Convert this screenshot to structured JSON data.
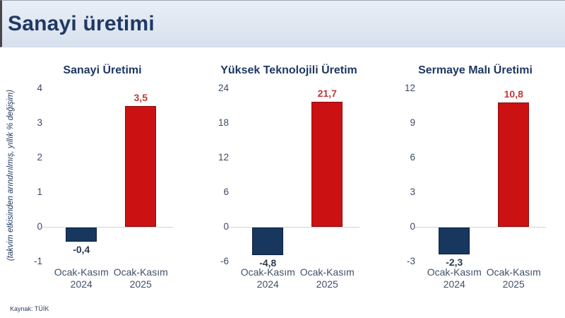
{
  "header": {
    "title": "Sanayi üretimi"
  },
  "y_axis_label": "(takvim etkisinden arındırılmış, yıllık % değişim)",
  "source": "Kaynak: TÜİK",
  "colors": {
    "navy_bar": "#17375e",
    "navy_bar_border": "#0d2140",
    "red_bar": "#cb1111",
    "red_bar_border": "#8e0e0e",
    "red_label": "#be3a3a",
    "navy_label": "#2e3b52",
    "title_navy": "#1f3864",
    "axis_text": "#3d4a63",
    "header_bg": "#dce5f0",
    "zero_line": "#d2d2d2"
  },
  "chart_data": [
    {
      "type": "bar",
      "title": "Sanayi Üretimi",
      "categories": [
        {
          "line1": "Ocak-Kasım",
          "line2": "2024"
        },
        {
          "line1": "Ocak-Kasım",
          "line2": "2025"
        }
      ],
      "values": [
        -0.4,
        3.5
      ],
      "value_labels": [
        "-0,4",
        "3,5"
      ],
      "bar_colors": [
        "#17375e",
        "#cb1111"
      ],
      "bar_border_colors": [
        "#0d2140",
        "#8e0e0e"
      ],
      "label_colors": [
        "#2e3b52",
        "#be3a3a"
      ],
      "ylim": [
        -1,
        4
      ],
      "yticks": [
        4,
        3,
        2,
        1,
        0,
        -1
      ],
      "grid": false,
      "legend": false
    },
    {
      "type": "bar",
      "title": "Yüksek Teknolojili Üretim",
      "categories": [
        {
          "line1": "Ocak-Kasım",
          "line2": "2024"
        },
        {
          "line1": "Ocak-Kasım",
          "line2": "2025"
        }
      ],
      "values": [
        -4.8,
        21.7
      ],
      "value_labels": [
        "-4,8",
        "21,7"
      ],
      "bar_colors": [
        "#17375e",
        "#cb1111"
      ],
      "bar_border_colors": [
        "#0d2140",
        "#8e0e0e"
      ],
      "label_colors": [
        "#2e3b52",
        "#be3a3a"
      ],
      "ylim": [
        -6,
        24
      ],
      "yticks": [
        24,
        18,
        12,
        6,
        0,
        -6
      ],
      "grid": false,
      "legend": false
    },
    {
      "type": "bar",
      "title": "Sermaye Malı Üretimi",
      "categories": [
        {
          "line1": "Ocak-Kasım",
          "line2": "2024"
        },
        {
          "line1": "Ocak-Kasım",
          "line2": "2025"
        }
      ],
      "values": [
        -2.3,
        10.8
      ],
      "value_labels": [
        "-2,3",
        "10,8"
      ],
      "bar_colors": [
        "#17375e",
        "#cb1111"
      ],
      "bar_border_colors": [
        "#0d2140",
        "#8e0e0e"
      ],
      "label_colors": [
        "#2e3b52",
        "#be3a3a"
      ],
      "ylim": [
        -3,
        12
      ],
      "yticks": [
        12,
        9,
        6,
        3,
        0,
        -3
      ],
      "grid": false,
      "legend": false
    }
  ]
}
